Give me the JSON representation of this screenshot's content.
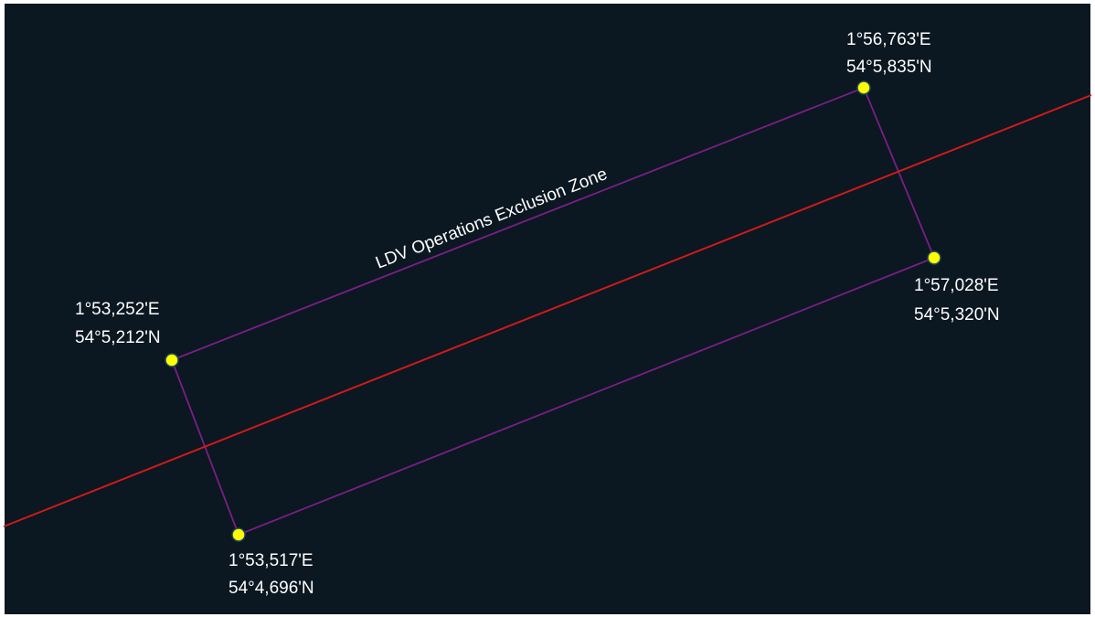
{
  "map": {
    "background_color": "#0b1721",
    "frame_color": "#ffffff",
    "zone_label": "LDV Operations Exclusion Zone",
    "zone_outline_color": "#7a1f86",
    "route_line_color": "#d11a1a",
    "vertex_marker_color": "#ffff00",
    "vertex_marker_stroke": "#1d4a5a",
    "vertices": {
      "top_right": {
        "lon": "1°56,763'E",
        "lat": "54°5,835'N"
      },
      "right": {
        "lon": "1°57,028'E",
        "lat": "54°5,320'N"
      },
      "left": {
        "lon": "1°53,252'E",
        "lat": "54°5,212'N"
      },
      "bottom_left": {
        "lon": "1°53,517'E",
        "lat": "54°4,696'N"
      }
    }
  }
}
